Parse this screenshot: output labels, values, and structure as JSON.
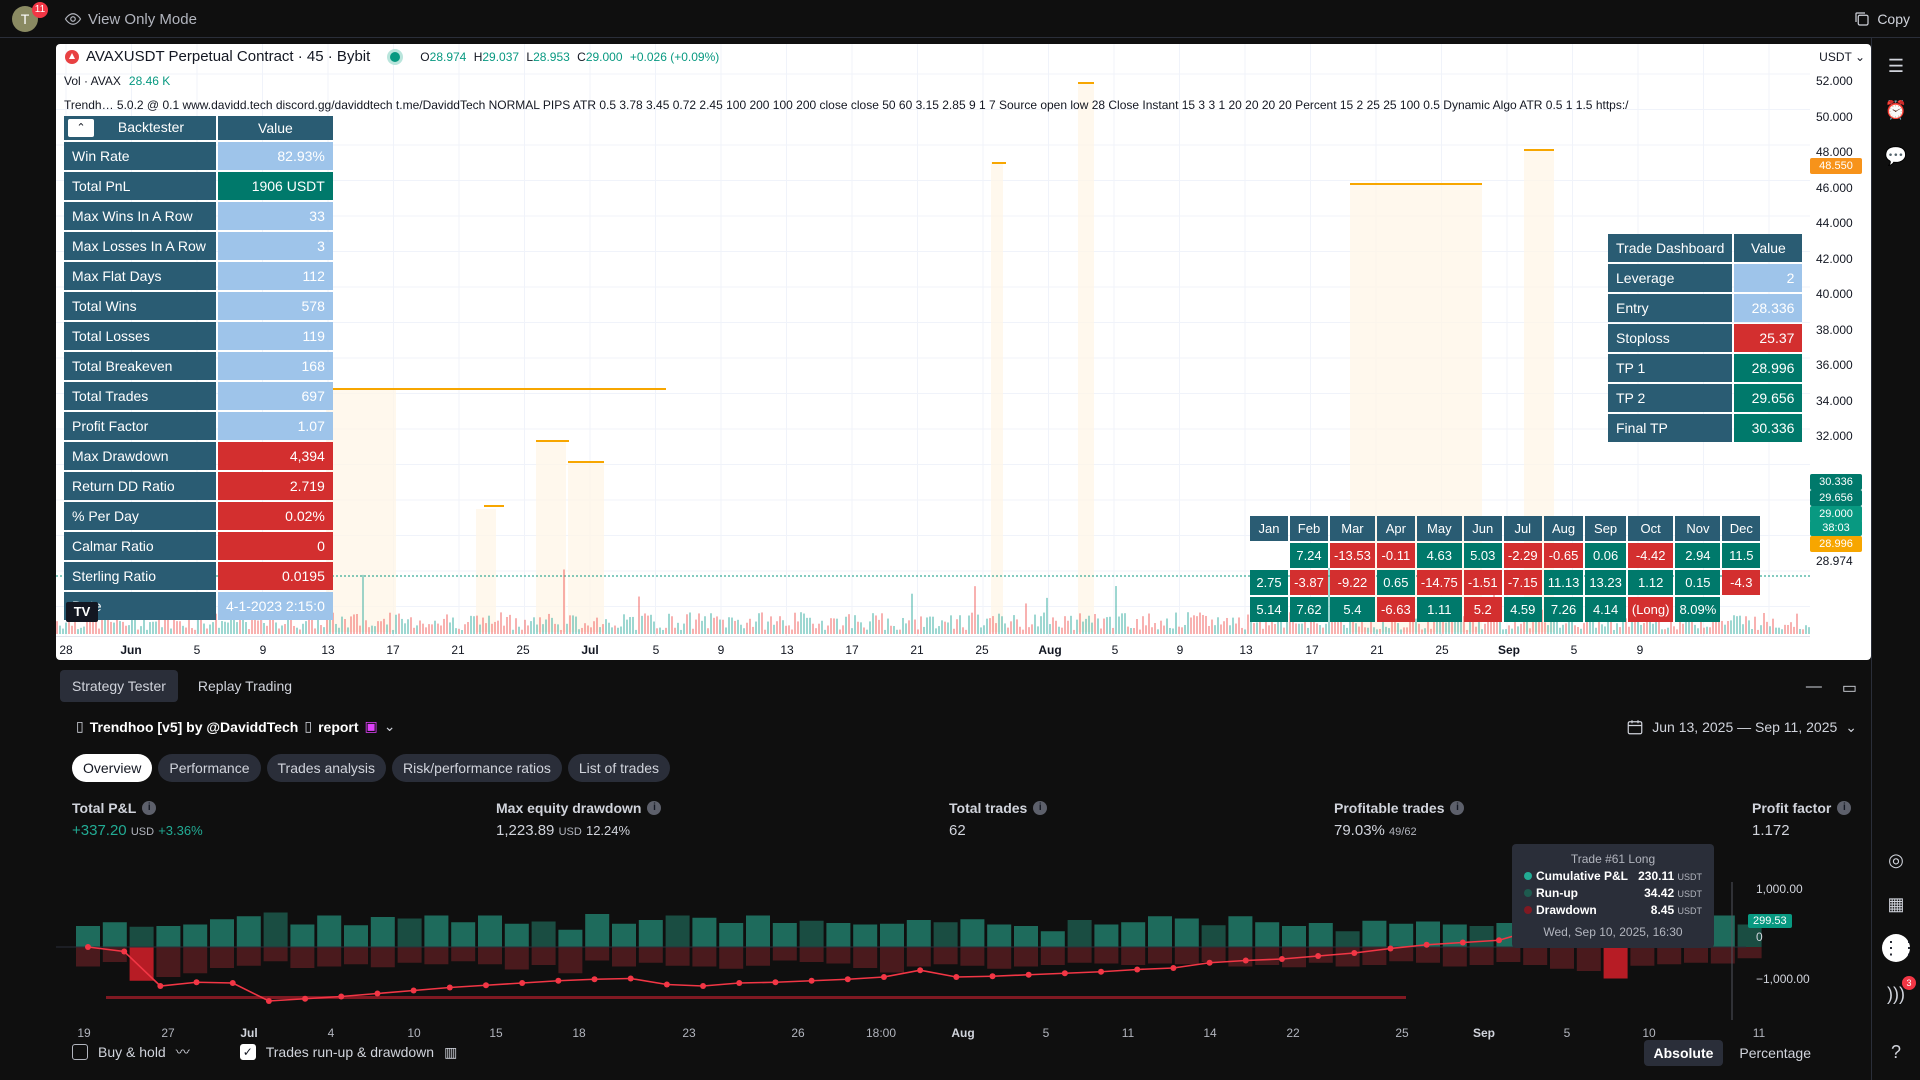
{
  "topbar": {
    "avatar_letter": "T",
    "avatar_badge": "11",
    "view_mode": "View Only Mode",
    "copy_label": "Copy"
  },
  "chart": {
    "symbol": "AVAXUSDT Perpetual Contract · 45 · Bybit",
    "ohlc": {
      "o_label": "O",
      "o": "28.974",
      "h_label": "H",
      "h": "29.037",
      "l_label": "L",
      "l": "28.953",
      "c_label": "C",
      "c": "29.000",
      "change": "+0.026 (+0.09%)"
    },
    "vol_label": "Vol · AVAX",
    "vol_value": "28.46 K",
    "indicator_line": "Trendh…  5.0.2 @ 0.1 www.davidd.tech discord.gg/daviddtech t.me/DaviddTech NORMAL PIPS ATR 0.5 3.78 3.45 0.72 2.45 100 200 100 200 close close 50 60 3.15 2.85 9 1 7 Source open low 28 Close Instant 15 3 3 1 20 20 20 20 Percent 15 2 25 25 100 0.5 Dynamic Algo ATR 0.5 1 1.5 https:/",
    "currency_btn": "USDT ⌄",
    "price_labels": [
      "52.000",
      "50.000",
      "48.000",
      "46.000",
      "44.000",
      "42.000",
      "40.000",
      "38.000",
      "36.000",
      "34.000",
      "32.000",
      "28.974"
    ],
    "price_tags": [
      {
        "text": "48.550",
        "color": "#f7931a"
      },
      {
        "text": "30.336",
        "color": "#00796b"
      },
      {
        "text": "29.656",
        "color": "#00796b"
      },
      {
        "text": "29.000",
        "color": "#089981"
      },
      {
        "text": "38:03",
        "color": "#089981"
      },
      {
        "text": "28.996",
        "color": "#f7a600"
      }
    ],
    "time_labels": [
      {
        "t": "28",
        "b": false
      },
      {
        "t": "Jun",
        "b": true
      },
      {
        "t": "5",
        "b": false
      },
      {
        "t": "9",
        "b": false
      },
      {
        "t": "13",
        "b": false
      },
      {
        "t": "17",
        "b": false
      },
      {
        "t": "21",
        "b": false
      },
      {
        "t": "25",
        "b": false
      },
      {
        "t": "Jul",
        "b": true
      },
      {
        "t": "5",
        "b": false
      },
      {
        "t": "9",
        "b": false
      },
      {
        "t": "13",
        "b": false
      },
      {
        "t": "17",
        "b": false
      },
      {
        "t": "21",
        "b": false
      },
      {
        "t": "25",
        "b": false
      },
      {
        "t": "Aug",
        "b": true
      },
      {
        "t": "5",
        "b": false
      },
      {
        "t": "9",
        "b": false
      },
      {
        "t": "13",
        "b": false
      },
      {
        "t": "17",
        "b": false
      },
      {
        "t": "21",
        "b": false
      },
      {
        "t": "25",
        "b": false
      },
      {
        "t": "Sep",
        "b": true
      },
      {
        "t": "5",
        "b": false
      },
      {
        "t": "9",
        "b": false
      }
    ]
  },
  "backtester": {
    "header": [
      "Backtester",
      "Value"
    ],
    "rows": [
      {
        "k": "Win Rate",
        "v": "82.93%",
        "c": "blue"
      },
      {
        "k": "Total PnL",
        "v": "1906 USDT",
        "c": "green"
      },
      {
        "k": "Max Wins In A Row",
        "v": "33",
        "c": "blue"
      },
      {
        "k": "Max Losses In A Row",
        "v": "3",
        "c": "blue"
      },
      {
        "k": "Max Flat Days",
        "v": "112",
        "c": "blue"
      },
      {
        "k": "Total Wins",
        "v": "578",
        "c": "blue"
      },
      {
        "k": "Total Losses",
        "v": "119",
        "c": "blue"
      },
      {
        "k": "Total Breakeven",
        "v": "168",
        "c": "blue"
      },
      {
        "k": "Total Trades",
        "v": "697",
        "c": "blue"
      },
      {
        "k": "Profit Factor",
        "v": "1.07",
        "c": "blue"
      },
      {
        "k": "Max Drawdown",
        "v": "4,394",
        "c": "red"
      },
      {
        "k": "Return DD Ratio",
        "v": "2.719",
        "c": "red"
      },
      {
        "k": "% Per Day",
        "v": "0.02%",
        "c": "red"
      },
      {
        "k": "Calmar Ratio",
        "v": "0",
        "c": "red"
      },
      {
        "k": "Sterling Ratio",
        "v": "0.0195",
        "c": "red"
      },
      {
        "k": "Date",
        "v": "4-1-2023 2:15:0",
        "c": "blue"
      }
    ]
  },
  "tradedash": {
    "header": [
      "Trade Dashboard",
      "Value"
    ],
    "rows": [
      {
        "k": "Leverage",
        "v": "2",
        "c": "blue"
      },
      {
        "k": "Entry",
        "v": "28.336",
        "c": "blue"
      },
      {
        "k": "Stoploss",
        "v": "25.37",
        "c": "red"
      },
      {
        "k": "TP 1",
        "v": "28.996",
        "c": "green"
      },
      {
        "k": "TP 2",
        "v": "29.656",
        "c": "green"
      },
      {
        "k": "Final TP",
        "v": "30.336",
        "c": "green"
      }
    ]
  },
  "monthly": {
    "header": [
      "Jan",
      "Feb",
      "Mar",
      "Apr",
      "May",
      "Jun",
      "Jul",
      "Aug",
      "Sep",
      "Oct",
      "Nov",
      "Dec"
    ],
    "rows": [
      [
        {
          "v": "",
          "c": "none"
        },
        {
          "v": "7.24",
          "c": "green"
        },
        {
          "v": "-13.53",
          "c": "red"
        },
        {
          "v": "-0.11",
          "c": "red"
        },
        {
          "v": "4.63",
          "c": "green"
        },
        {
          "v": "5.03",
          "c": "green"
        },
        {
          "v": "-2.29",
          "c": "red"
        },
        {
          "v": "-0.65",
          "c": "red"
        },
        {
          "v": "0.06",
          "c": "green"
        },
        {
          "v": "-4.42",
          "c": "red"
        },
        {
          "v": "2.94",
          "c": "green"
        },
        {
          "v": "11.5",
          "c": "green"
        }
      ],
      [
        {
          "v": "2.75",
          "c": "green"
        },
        {
          "v": "-3.87",
          "c": "red"
        },
        {
          "v": "-9.22",
          "c": "red"
        },
        {
          "v": "0.65",
          "c": "green"
        },
        {
          "v": "-14.75",
          "c": "red"
        },
        {
          "v": "-1.51",
          "c": "red"
        },
        {
          "v": "-7.15",
          "c": "red"
        },
        {
          "v": "11.13",
          "c": "green"
        },
        {
          "v": "13.23",
          "c": "green"
        },
        {
          "v": "1.12",
          "c": "green"
        },
        {
          "v": "0.15",
          "c": "green"
        },
        {
          "v": "-4.3",
          "c": "red"
        }
      ],
      [
        {
          "v": "5.14",
          "c": "green"
        },
        {
          "v": "7.62",
          "c": "green"
        },
        {
          "v": "5.4",
          "c": "green"
        },
        {
          "v": "-6.63",
          "c": "red"
        },
        {
          "v": "1.11",
          "c": "green"
        },
        {
          "v": "5.2",
          "c": "red"
        },
        {
          "v": "4.59",
          "c": "green"
        },
        {
          "v": "7.26",
          "c": "green"
        },
        {
          "v": "4.14",
          "c": "green"
        },
        {
          "v": "(Long)",
          "c": "red"
        },
        {
          "v": "8.09%",
          "c": "green"
        },
        {
          "v": "",
          "c": "none"
        }
      ]
    ]
  },
  "bottom": {
    "tabs": [
      "Strategy Tester",
      "Replay Trading"
    ],
    "strategy": "Trendhoo [v5] by @DaviddTech",
    "report": "report",
    "date_range": "Jun 13, 2025 — Sep 11, 2025",
    "subtabs": [
      "Overview",
      "Performance",
      "Trades analysis",
      "Risk/performance ratios",
      "List of trades"
    ],
    "metrics": [
      {
        "title": "Total P&L",
        "value": "+337.20",
        "unit": "USD",
        "extra": "+3.36%",
        "green": true
      },
      {
        "title": "Max equity drawdown",
        "value": "1,223.89",
        "unit": "USD",
        "extra": "12.24%",
        "green": false
      },
      {
        "title": "Total trades",
        "value": "62",
        "unit": "",
        "extra": "",
        "green": false
      },
      {
        "title": "Profitable trades",
        "value": "79.03%",
        "unit": "",
        "extra": "49/62",
        "green": false
      },
      {
        "title": "Profit factor",
        "value": "1.172",
        "unit": "",
        "extra": "",
        "green": false
      }
    ],
    "tooltip": {
      "title": "Trade #61 Long",
      "rows": [
        {
          "k": "Cumulative P&L",
          "v": "230.11",
          "u": "USDT",
          "c": "#22ab94"
        },
        {
          "k": "Run-up",
          "v": "34.42",
          "u": "USDT",
          "c": "#1e5b4f"
        },
        {
          "k": "Drawdown",
          "v": "8.45",
          "u": "USDT",
          "c": "#801922"
        }
      ],
      "date": "Wed, Sep 10, 2025, 16:30"
    },
    "y_labels": [
      "1,000.00",
      "0",
      "−1,000.00"
    ],
    "current_tag": "299.53",
    "x_labels": [
      {
        "t": "19",
        "b": false
      },
      {
        "t": "27",
        "b": false
      },
      {
        "t": "Jul",
        "b": true
      },
      {
        "t": "4",
        "b": false
      },
      {
        "t": "10",
        "b": false
      },
      {
        "t": "15",
        "b": false
      },
      {
        "t": "18",
        "b": false
      },
      {
        "t": "23",
        "b": false
      },
      {
        "t": "26",
        "b": false
      },
      {
        "t": "18:00",
        "b": false
      },
      {
        "t": "Aug",
        "b": true
      },
      {
        "t": "5",
        "b": false
      },
      {
        "t": "11",
        "b": false
      },
      {
        "t": "14",
        "b": false
      },
      {
        "t": "22",
        "b": false
      },
      {
        "t": "25",
        "b": false
      },
      {
        "t": "Sep",
        "b": true
      },
      {
        "t": "5",
        "b": false
      },
      {
        "t": "10",
        "b": false
      },
      {
        "t": "11",
        "b": false
      }
    ],
    "buy_hold": "Buy & hold",
    "runup_dd": "Trades run-up & drawdown",
    "absolute": "Absolute",
    "percentage": "Percentage"
  },
  "right_sidebar": {
    "notif_badge": "3"
  },
  "equity_data": {
    "runup": [
      280,
      330,
      270,
      280,
      300,
      370,
      410,
      460,
      300,
      420,
      290,
      400,
      380,
      420,
      330,
      420,
      310,
      340,
      230,
      440,
      310,
      360,
      420,
      390,
      320,
      420,
      320,
      350,
      320,
      300,
      310,
      360,
      330,
      370,
      300,
      280,
      210,
      360,
      300,
      330,
      410,
      380,
      290,
      410,
      330,
      280,
      320,
      210,
      350,
      310,
      340,
      300,
      280,
      320,
      240,
      200,
      290,
      0,
      320,
      280,
      360,
      420,
      300
    ],
    "drawdown": [
      260,
      200,
      450,
      400,
      350,
      280,
      250,
      190,
      280,
      260,
      230,
      270,
      210,
      230,
      190,
      230,
      300,
      240,
      350,
      180,
      260,
      210,
      250,
      260,
      290,
      250,
      180,
      200,
      220,
      280,
      340,
      260,
      230,
      250,
      290,
      260,
      240,
      210,
      220,
      240,
      220,
      230,
      200,
      260,
      240,
      270,
      210,
      260,
      240,
      190,
      210,
      260,
      240,
      200,
      240,
      290,
      320,
      420,
      250,
      230,
      210,
      220,
      150
    ],
    "pnl": [
      0,
      -60,
      -520,
      -470,
      -480,
      -720,
      -690,
      -660,
      -620,
      -580,
      -540,
      -510,
      -480,
      -450,
      -430,
      -420,
      -500,
      -520,
      -480,
      -470,
      -450,
      -430,
      -400,
      -310,
      -400,
      -390,
      -370,
      -350,
      -330,
      -300,
      -280,
      -210,
      -180,
      -160,
      -120,
      -80,
      -20,
      30,
      60,
      90,
      230,
      220,
      180,
      160,
      300
    ]
  }
}
